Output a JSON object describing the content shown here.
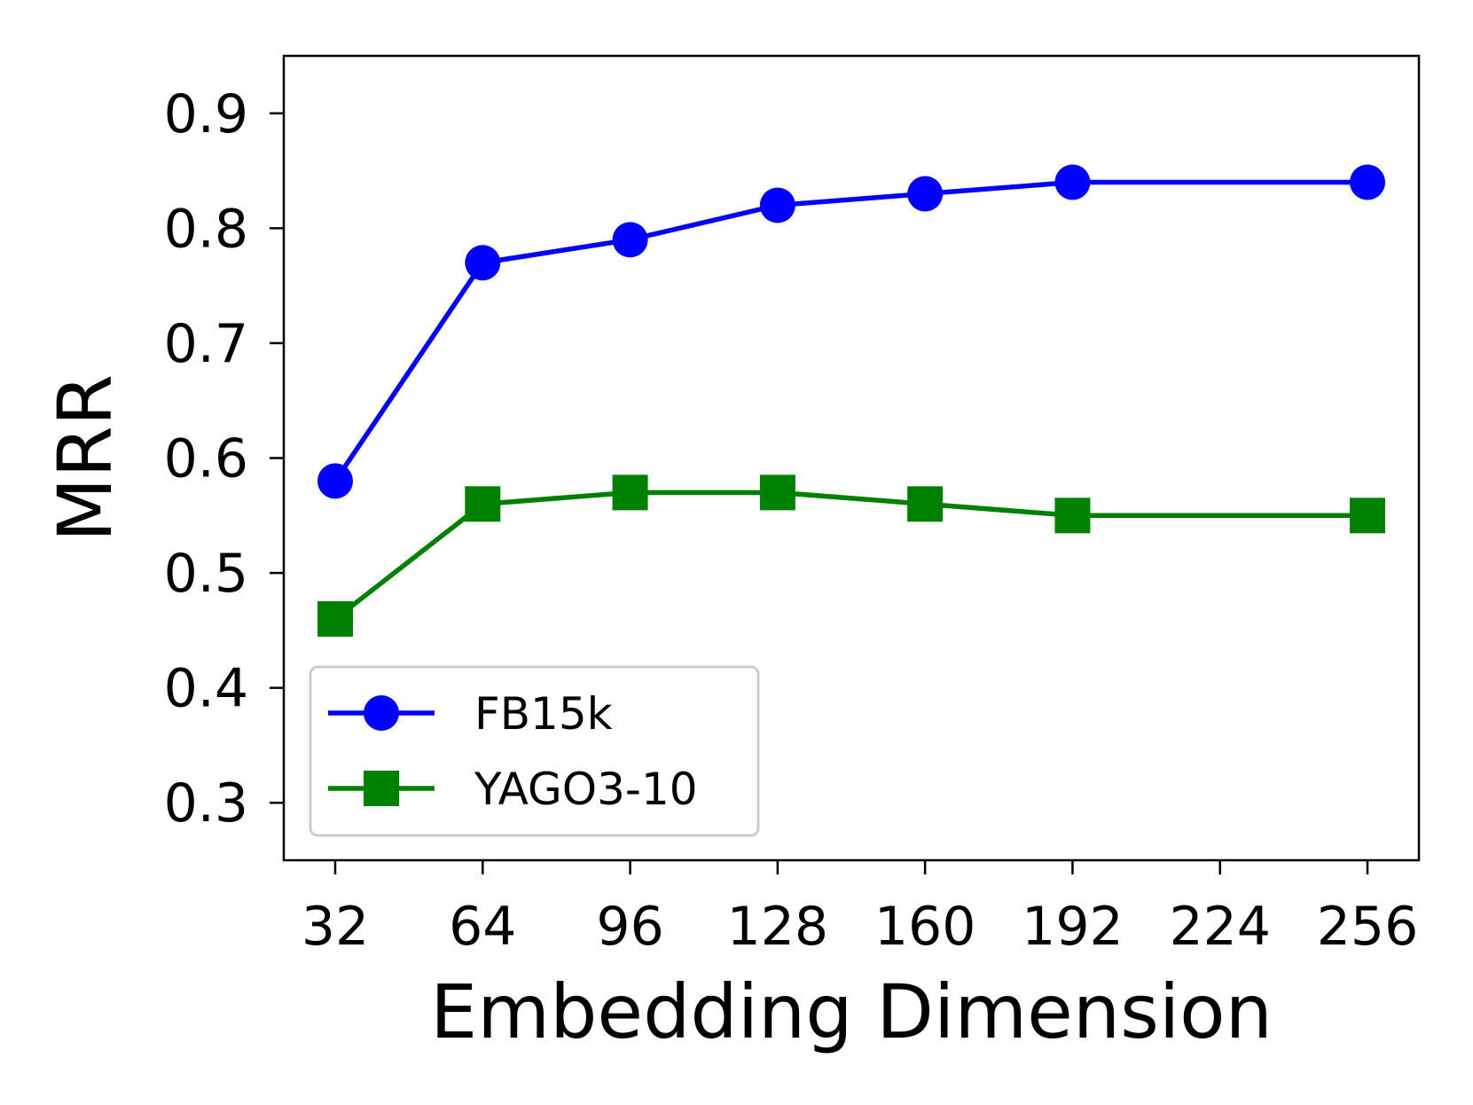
{
  "chart_data": {
    "type": "line",
    "title": "",
    "xlabel": "Embedding Dimension",
    "ylabel": "MRR",
    "xlim": [
      32,
      256
    ],
    "ylim": [
      0.25,
      0.95
    ],
    "xticks": [
      32,
      64,
      96,
      128,
      160,
      192,
      224,
      256
    ],
    "xtick_labels": [
      "32",
      "64",
      "96",
      "128",
      "160",
      "192",
      "224",
      "256"
    ],
    "yticks": [
      0.3,
      0.4,
      0.5,
      0.6,
      0.7,
      0.8,
      0.9
    ],
    "ytick_labels": [
      "0.3",
      "0.4",
      "0.5",
      "0.6",
      "0.7",
      "0.8",
      "0.9"
    ],
    "grid": false,
    "legend_position": "lower-left",
    "x": [
      32,
      64,
      96,
      128,
      160,
      192,
      256
    ],
    "series": [
      {
        "name": "FB15k",
        "color": "#0000ff",
        "marker": "circle",
        "values": [
          0.58,
          0.77,
          0.79,
          0.82,
          0.83,
          0.84,
          0.84
        ]
      },
      {
        "name": "YAGO3-10",
        "color": "#008000",
        "marker": "square",
        "values": [
          0.46,
          0.56,
          0.57,
          0.57,
          0.56,
          0.55,
          0.55
        ]
      }
    ]
  }
}
